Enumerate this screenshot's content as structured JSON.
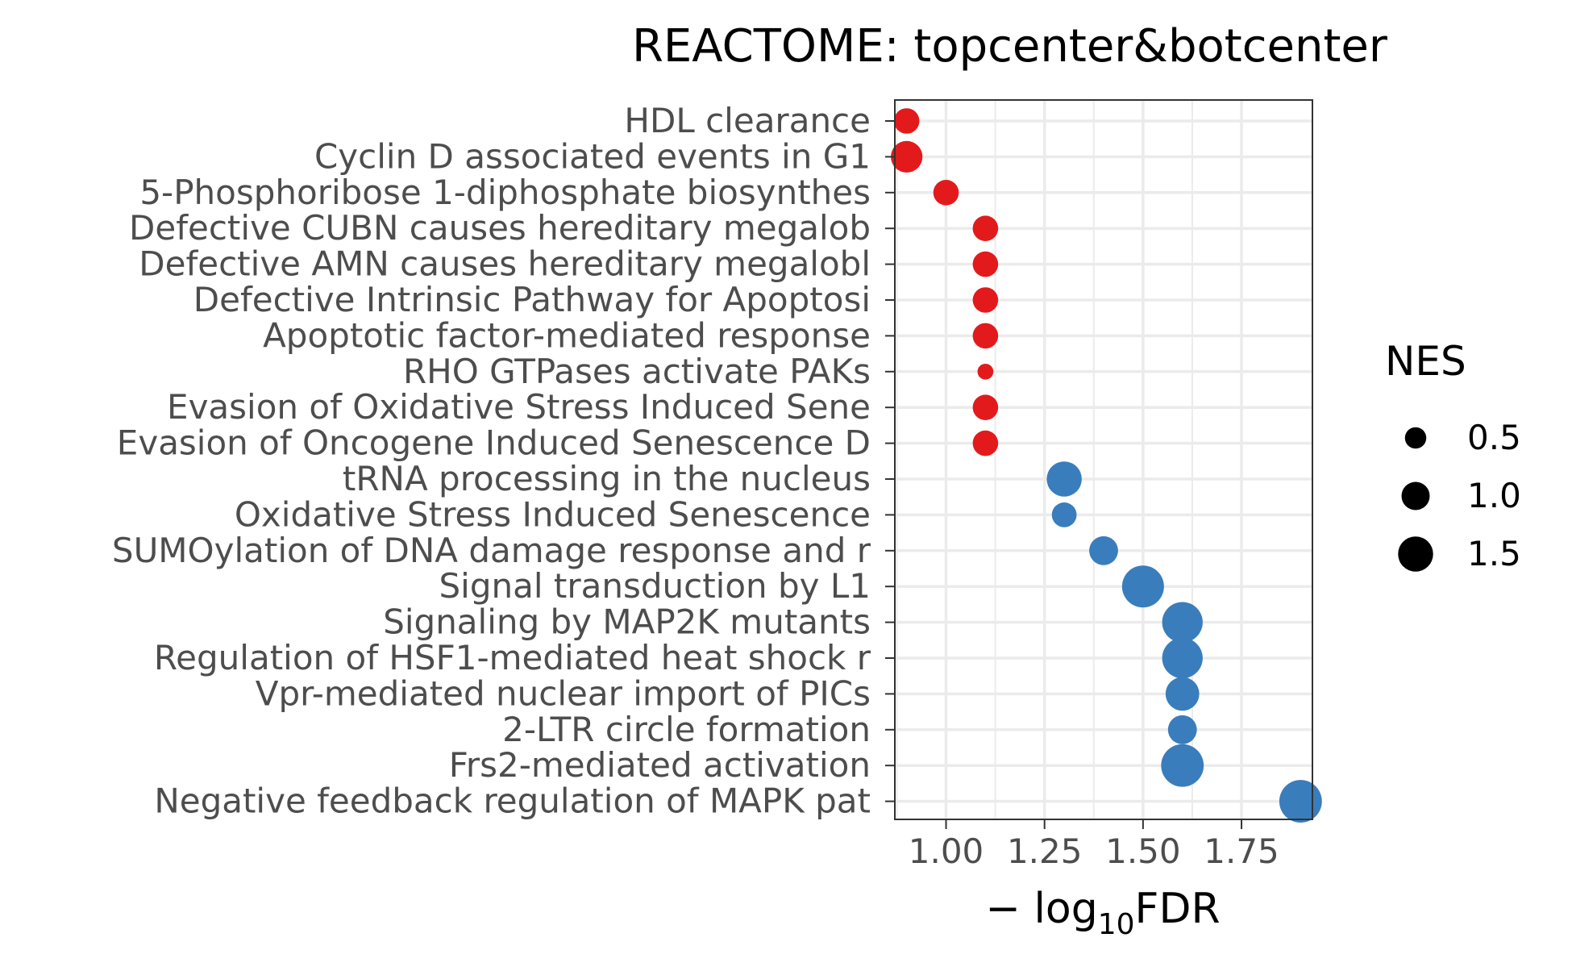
{
  "chart_data": {
    "type": "scatter",
    "title": "REACTOME: topcenter&botcenter",
    "xlabel_prefix": "− log",
    "xlabel_sub": "10",
    "xlabel_suffix": "FDR",
    "ylabel": "",
    "xlim": [
      0.87,
      1.93
    ],
    "xticks": [
      1.0,
      1.25,
      1.5,
      1.75
    ],
    "xtick_labels": [
      "1.00",
      "1.25",
      "1.50",
      "1.75"
    ],
    "grid": true,
    "colors": {
      "up": "#e31a1c",
      "down": "#3a7dbc",
      "panel_border": "#333333",
      "grid": "#ebebeb",
      "tick_label": "#4d4d4d",
      "title": "#000000"
    },
    "legend": {
      "title": "NES",
      "placement": "right",
      "entries": [
        {
          "label": "0.5",
          "value": 0.5
        },
        {
          "label": "1.0",
          "value": 1.0
        },
        {
          "label": "1.5",
          "value": 1.5
        }
      ]
    },
    "points": [
      {
        "term": "HDL clearance",
        "x": 0.9,
        "nes": 0.8,
        "group": "up"
      },
      {
        "term": "Cyclin D associated events in G1",
        "x": 0.9,
        "nes": 1.25,
        "group": "up"
      },
      {
        "term": "5-Phosphoribose 1-diphosphate biosynthes",
        "x": 1.0,
        "nes": 0.8,
        "group": "up"
      },
      {
        "term": "Defective CUBN causes hereditary megalob",
        "x": 1.1,
        "nes": 0.8,
        "group": "up"
      },
      {
        "term": "Defective AMN causes hereditary megalobl",
        "x": 1.1,
        "nes": 0.8,
        "group": "up"
      },
      {
        "term": "Defective Intrinsic Pathway for Apoptosi",
        "x": 1.1,
        "nes": 0.8,
        "group": "up"
      },
      {
        "term": "Apoptotic factor-mediated response",
        "x": 1.1,
        "nes": 0.8,
        "group": "up"
      },
      {
        "term": "RHO GTPases activate PAKs",
        "x": 1.1,
        "nes": 0.1,
        "group": "up"
      },
      {
        "term": "Evasion of Oxidative Stress Induced Sene",
        "x": 1.1,
        "nes": 0.8,
        "group": "up"
      },
      {
        "term": "Evasion of Oncogene Induced Senescence D",
        "x": 1.1,
        "nes": 0.8,
        "group": "up"
      },
      {
        "term": "tRNA processing in the nucleus",
        "x": 1.3,
        "nes": 1.5,
        "group": "down"
      },
      {
        "term": "Oxidative Stress Induced Senescence",
        "x": 1.3,
        "nes": 0.75,
        "group": "down"
      },
      {
        "term": "SUMOylation of DNA damage response and r",
        "x": 1.4,
        "nes": 1.05,
        "group": "down"
      },
      {
        "term": "Signal transduction by L1",
        "x": 1.5,
        "nes": 2.0,
        "group": "down"
      },
      {
        "term": "Signaling by MAP2K mutants",
        "x": 1.6,
        "nes": 1.9,
        "group": "down"
      },
      {
        "term": "Regulation of HSF1-mediated heat shock r",
        "x": 1.6,
        "nes": 1.9,
        "group": "down"
      },
      {
        "term": "Vpr-mediated nuclear import of PICs",
        "x": 1.6,
        "nes": 1.4,
        "group": "down"
      },
      {
        "term": "2-LTR circle formation",
        "x": 1.6,
        "nes": 1.05,
        "group": "down"
      },
      {
        "term": "Frs2-mediated activation",
        "x": 1.6,
        "nes": 2.05,
        "group": "down"
      },
      {
        "term": "Negative feedback regulation of MAPK pat",
        "x": 1.9,
        "nes": 2.05,
        "group": "down"
      }
    ]
  }
}
